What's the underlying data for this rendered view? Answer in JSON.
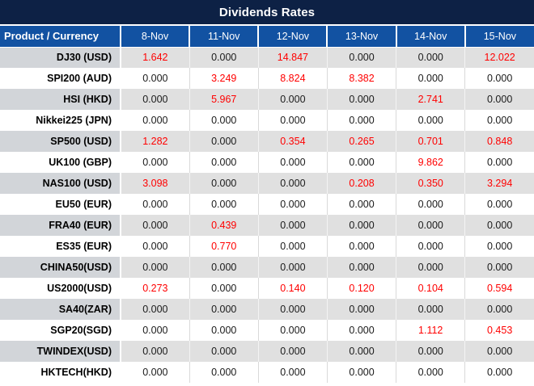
{
  "title": "Dividends Rates",
  "colors": {
    "title_bg": "#0d2145",
    "header_bg": "#1252a2",
    "header_text": "#ffffff",
    "alt_row_product_bg": "#d2d5d9",
    "alt_row_value_bg": "#e0e0e0",
    "zero_value_text": "#1a1a1a",
    "nonzero_value_text": "#ff0000"
  },
  "chart_data": {
    "type": "table",
    "title": "Dividends Rates",
    "product_header": "Product / Currency",
    "date_headers": [
      "8-Nov",
      "11-Nov",
      "12-Nov",
      "13-Nov",
      "14-Nov",
      "15-Nov"
    ],
    "rows": [
      {
        "product": "DJ30 (USD)",
        "values": [
          "1.642",
          "0.000",
          "14.847",
          "0.000",
          "0.000",
          "12.022"
        ]
      },
      {
        "product": "SPI200 (AUD)",
        "values": [
          "0.000",
          "3.249",
          "8.824",
          "8.382",
          "0.000",
          "0.000"
        ]
      },
      {
        "product": "HSI (HKD)",
        "values": [
          "0.000",
          "5.967",
          "0.000",
          "0.000",
          "2.741",
          "0.000"
        ]
      },
      {
        "product": "Nikkei225 (JPN)",
        "values": [
          "0.000",
          "0.000",
          "0.000",
          "0.000",
          "0.000",
          "0.000"
        ]
      },
      {
        "product": "SP500 (USD)",
        "values": [
          "1.282",
          "0.000",
          "0.354",
          "0.265",
          "0.701",
          "0.848"
        ]
      },
      {
        "product": "UK100 (GBP)",
        "values": [
          "0.000",
          "0.000",
          "0.000",
          "0.000",
          "9.862",
          "0.000"
        ]
      },
      {
        "product": "NAS100 (USD)",
        "values": [
          "3.098",
          "0.000",
          "0.000",
          "0.208",
          "0.350",
          "3.294"
        ]
      },
      {
        "product": "EU50 (EUR)",
        "values": [
          "0.000",
          "0.000",
          "0.000",
          "0.000",
          "0.000",
          "0.000"
        ]
      },
      {
        "product": "FRA40 (EUR)",
        "values": [
          "0.000",
          "0.439",
          "0.000",
          "0.000",
          "0.000",
          "0.000"
        ]
      },
      {
        "product": "ES35 (EUR)",
        "values": [
          "0.000",
          "0.770",
          "0.000",
          "0.000",
          "0.000",
          "0.000"
        ]
      },
      {
        "product": "CHINA50(USD)",
        "values": [
          "0.000",
          "0.000",
          "0.000",
          "0.000",
          "0.000",
          "0.000"
        ]
      },
      {
        "product": "US2000(USD)",
        "values": [
          "0.273",
          "0.000",
          "0.140",
          "0.120",
          "0.104",
          "0.594"
        ]
      },
      {
        "product": "SA40(ZAR)",
        "values": [
          "0.000",
          "0.000",
          "0.000",
          "0.000",
          "0.000",
          "0.000"
        ]
      },
      {
        "product": "SGP20(SGD)",
        "values": [
          "0.000",
          "0.000",
          "0.000",
          "0.000",
          "1.112",
          "0.453"
        ]
      },
      {
        "product": "TWINDEX(USD)",
        "values": [
          "0.000",
          "0.000",
          "0.000",
          "0.000",
          "0.000",
          "0.000"
        ]
      },
      {
        "product": "HKTECH(HKD)",
        "values": [
          "0.000",
          "0.000",
          "0.000",
          "0.000",
          "0.000",
          "0.000"
        ]
      }
    ]
  }
}
